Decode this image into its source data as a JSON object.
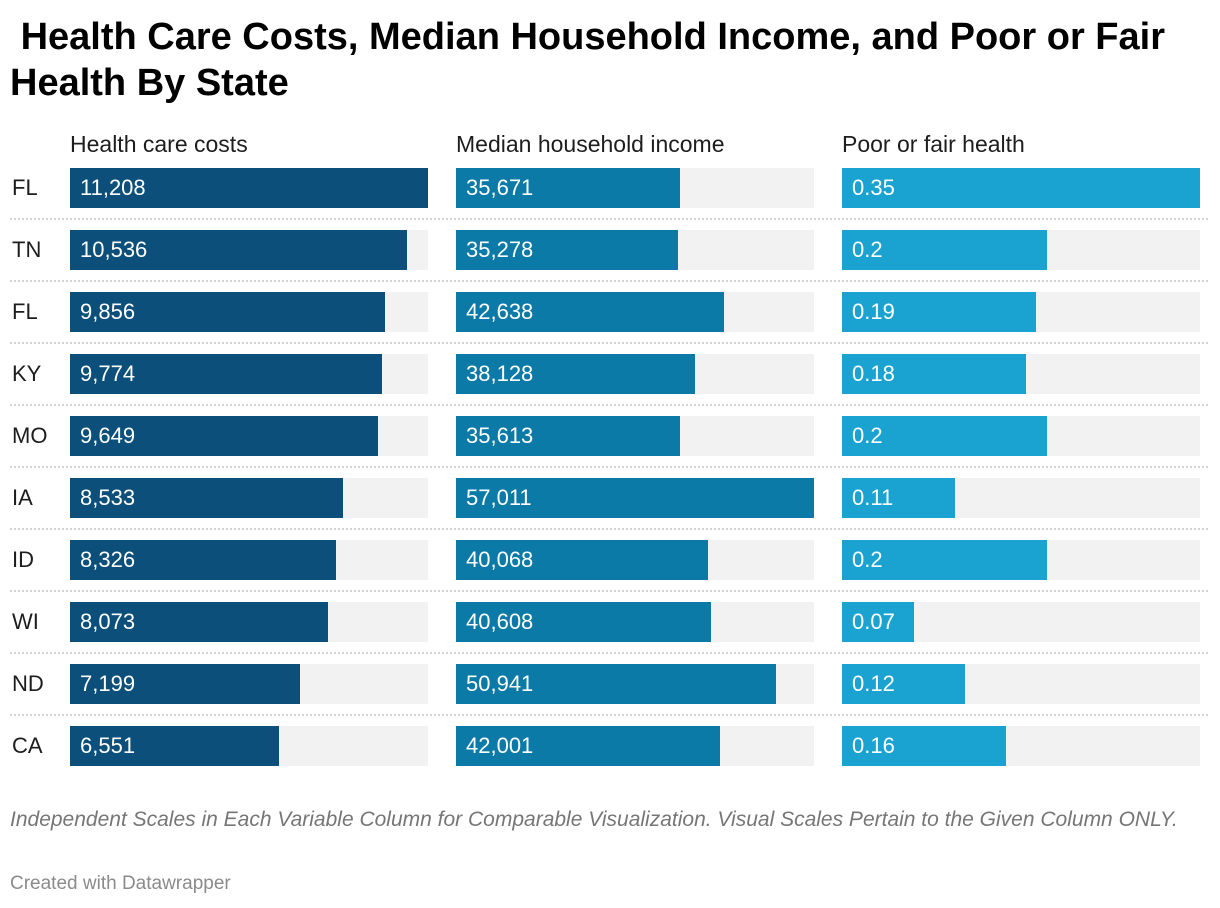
{
  "title": " Health Care Costs, Median Household Income, and Poor or Fair Health By State",
  "notes": "Independent Scales in Each Variable Column for Comparable Visualization. Visual Scales Pertain to the Given Column ONLY.",
  "credit": "Created with Datawrapper",
  "colors": {
    "health_care_costs": "#0b4f7a",
    "median_household_income": "#0b7aa6",
    "poor_or_fair_health": "#1aa3d1",
    "track": "#f2f2f2"
  },
  "chart_data": {
    "type": "bar",
    "orientation": "horizontal",
    "layout": "small-multiples, independent scale per column",
    "categories": [
      "FL",
      "TN",
      "FL",
      "KY",
      "MO",
      "IA",
      "ID",
      "WI",
      "ND",
      "CA"
    ],
    "series": [
      {
        "name": "Health care costs",
        "values": [
          11208,
          10536,
          9856,
          9774,
          9649,
          8533,
          8326,
          8073,
          7199,
          6551
        ],
        "labels": [
          "11,208",
          "10,536",
          "9,856",
          "9,774",
          "9,649",
          "8,533",
          "8,326",
          "8,073",
          "7,199",
          "6,551"
        ],
        "xlim": [
          0,
          11208
        ]
      },
      {
        "name": "Median household income",
        "values": [
          35671,
          35278,
          42638,
          38128,
          35613,
          57011,
          40068,
          40608,
          50941,
          42001
        ],
        "labels": [
          "35,671",
          "35,278",
          "42,638",
          "38,128",
          "35,613",
          "57,011",
          "40,068",
          "40,608",
          "50,941",
          "42,001"
        ],
        "xlim": [
          0,
          57011
        ]
      },
      {
        "name": "Poor or fair health",
        "values": [
          0.35,
          0.2,
          0.19,
          0.18,
          0.2,
          0.11,
          0.2,
          0.07,
          0.12,
          0.16
        ],
        "labels": [
          "0.35",
          "0.2",
          "0.19",
          "0.18",
          "0.2",
          "0.11",
          "0.2",
          "0.07",
          "0.12",
          "0.16"
        ],
        "xlim": [
          0,
          0.35
        ]
      }
    ],
    "grid": false,
    "legend": "none"
  }
}
